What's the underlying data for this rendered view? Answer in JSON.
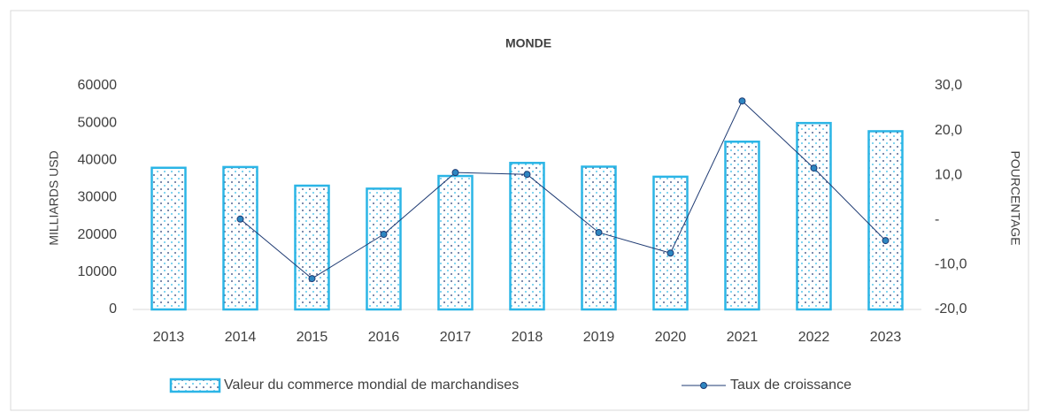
{
  "chart_data": {
    "type": "bar_line",
    "title": "MONDE",
    "y_label": "MILLIARDS USD",
    "y2_label": "POURCENTAGE",
    "categories": [
      "2013",
      "2014",
      "2015",
      "2016",
      "2017",
      "2018",
      "2019",
      "2020",
      "2021",
      "2022",
      "2023"
    ],
    "series": [
      {
        "name": "Valeur du commerce mondial de marchandises",
        "type": "bar",
        "color": "#2bb5e6",
        "values": [
          38000,
          38200,
          33200,
          32400,
          35800,
          39300,
          38300,
          35600,
          45000,
          50000,
          47800
        ]
      },
      {
        "name": "Taux de croissance",
        "type": "line",
        "axis": "y2",
        "color": "#1f3b73",
        "marker_color": "#2e86c1",
        "values": [
          null,
          0.2,
          -13.1,
          -3.2,
          10.6,
          10.2,
          -2.8,
          -7.4,
          26.6,
          11.6,
          -4.6
        ]
      }
    ],
    "ylim": [
      0,
      60000
    ],
    "yticks": [
      0,
      10000,
      20000,
      30000,
      40000,
      50000,
      60000
    ],
    "y2lim": [
      -20,
      30
    ],
    "y2ticks": [
      {
        "value": -20,
        "label": "-20,0"
      },
      {
        "value": -10,
        "label": "-10,0"
      },
      {
        "value": 0,
        "label": "-"
      },
      {
        "value": 10,
        "label": "10,0"
      },
      {
        "value": 20,
        "label": "20,0"
      },
      {
        "value": 30,
        "label": "30,0"
      }
    ],
    "grid": false,
    "legend": "bottom"
  }
}
